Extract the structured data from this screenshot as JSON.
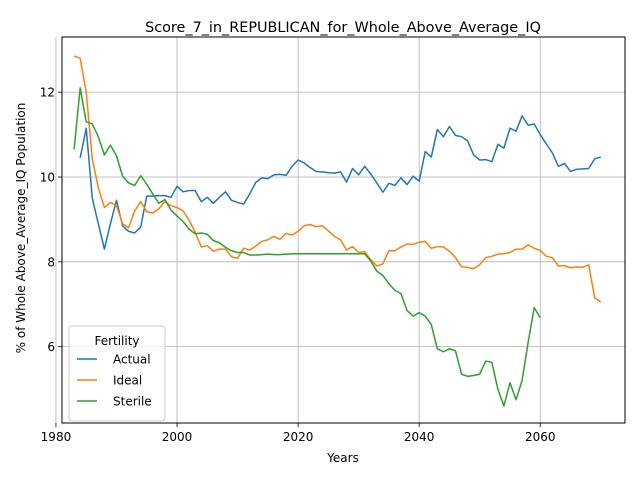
{
  "chart_data": {
    "type": "line",
    "title": "Score_7_in_REPUBLICAN_for_Whole_Above_Average_IQ",
    "xlabel": "Years",
    "ylabel": "% of Whole Above_Average_IQ Population",
    "xlim": [
      1981,
      2074
    ],
    "ylim": [
      4.2,
      13.3
    ],
    "xticks": [
      1980,
      2000,
      2020,
      2040,
      2060
    ],
    "yticks": [
      6,
      8,
      10,
      12
    ],
    "grid": true,
    "legend": {
      "title": "Fertility",
      "position": "lower-left"
    },
    "series": [
      {
        "name": "Actual",
        "color": "#1f77b4",
        "points": [
          [
            1984,
            10.45
          ],
          [
            1985,
            11.15
          ],
          [
            1986,
            9.5
          ],
          [
            1987,
            8.9
          ],
          [
            1988,
            8.3
          ],
          [
            1989,
            8.9
          ],
          [
            1990,
            9.45
          ],
          [
            1991,
            8.85
          ],
          [
            1992,
            8.72
          ],
          [
            1993,
            8.68
          ],
          [
            1994,
            8.82
          ],
          [
            1995,
            9.55
          ],
          [
            1996,
            9.55
          ],
          [
            1997,
            9.56
          ],
          [
            1998,
            9.56
          ],
          [
            1999,
            9.52
          ],
          [
            2000,
            9.78
          ],
          [
            2001,
            9.65
          ],
          [
            2002,
            9.68
          ],
          [
            2003,
            9.68
          ],
          [
            2004,
            9.42
          ],
          [
            2005,
            9.52
          ],
          [
            2006,
            9.38
          ],
          [
            2007,
            9.52
          ],
          [
            2008,
            9.65
          ],
          [
            2009,
            9.45
          ],
          [
            2010,
            9.4
          ],
          [
            2011,
            9.36
          ],
          [
            2012,
            9.6
          ],
          [
            2013,
            9.87
          ],
          [
            2014,
            9.98
          ],
          [
            2015,
            9.96
          ],
          [
            2016,
            10.05
          ],
          [
            2017,
            10.06
          ],
          [
            2018,
            10.04
          ],
          [
            2019,
            10.25
          ],
          [
            2020,
            10.4
          ],
          [
            2021,
            10.33
          ],
          [
            2022,
            10.22
          ],
          [
            2023,
            10.13
          ],
          [
            2024,
            10.12
          ],
          [
            2025,
            10.1
          ],
          [
            2026,
            10.09
          ],
          [
            2027,
            10.12
          ],
          [
            2028,
            9.88
          ],
          [
            2029,
            10.2
          ],
          [
            2030,
            10.05
          ],
          [
            2031,
            10.25
          ],
          [
            2032,
            10.07
          ],
          [
            2033,
            9.86
          ],
          [
            2034,
            9.64
          ],
          [
            2035,
            9.85
          ],
          [
            2036,
            9.8
          ],
          [
            2037,
            9.98
          ],
          [
            2038,
            9.82
          ],
          [
            2039,
            10.02
          ],
          [
            2040,
            9.9
          ],
          [
            2041,
            10.6
          ],
          [
            2042,
            10.47
          ],
          [
            2043,
            11.12
          ],
          [
            2044,
            10.95
          ],
          [
            2045,
            11.19
          ],
          [
            2046,
            10.98
          ],
          [
            2047,
            10.95
          ],
          [
            2048,
            10.85
          ],
          [
            2049,
            10.52
          ],
          [
            2050,
            10.4
          ],
          [
            2051,
            10.41
          ],
          [
            2052,
            10.36
          ],
          [
            2053,
            10.77
          ],
          [
            2054,
            10.68
          ],
          [
            2055,
            11.15
          ],
          [
            2056,
            11.08
          ],
          [
            2057,
            11.44
          ],
          [
            2058,
            11.22
          ],
          [
            2059,
            11.25
          ],
          [
            2060,
            11.0
          ],
          [
            2061,
            10.78
          ],
          [
            2062,
            10.57
          ],
          [
            2063,
            10.25
          ],
          [
            2064,
            10.32
          ],
          [
            2065,
            10.13
          ],
          [
            2066,
            10.18
          ],
          [
            2067,
            10.19
          ],
          [
            2068,
            10.2
          ],
          [
            2069,
            10.43
          ],
          [
            2070,
            10.47
          ]
        ]
      },
      {
        "name": "Ideal",
        "color": "#ff7f0e",
        "points": [
          [
            1983,
            12.85
          ],
          [
            1984,
            12.8
          ],
          [
            1985,
            12.0
          ],
          [
            1986,
            10.42
          ],
          [
            1987,
            9.75
          ],
          [
            1988,
            9.28
          ],
          [
            1989,
            9.4
          ],
          [
            1990,
            9.32
          ],
          [
            1991,
            8.9
          ],
          [
            1992,
            8.8
          ],
          [
            1993,
            9.2
          ],
          [
            1994,
            9.42
          ],
          [
            1995,
            9.18
          ],
          [
            1996,
            9.15
          ],
          [
            1997,
            9.25
          ],
          [
            1998,
            9.42
          ],
          [
            1999,
            9.32
          ],
          [
            2000,
            9.28
          ],
          [
            2001,
            9.2
          ],
          [
            2002,
            8.98
          ],
          [
            2003,
            8.7
          ],
          [
            2004,
            8.35
          ],
          [
            2005,
            8.38
          ],
          [
            2006,
            8.25
          ],
          [
            2007,
            8.3
          ],
          [
            2008,
            8.3
          ],
          [
            2009,
            8.12
          ],
          [
            2010,
            8.08
          ],
          [
            2011,
            8.32
          ],
          [
            2012,
            8.28
          ],
          [
            2013,
            8.37
          ],
          [
            2014,
            8.48
          ],
          [
            2015,
            8.52
          ],
          [
            2016,
            8.6
          ],
          [
            2017,
            8.53
          ],
          [
            2018,
            8.67
          ],
          [
            2019,
            8.63
          ],
          [
            2020,
            8.72
          ],
          [
            2021,
            8.85
          ],
          [
            2022,
            8.88
          ],
          [
            2023,
            8.83
          ],
          [
            2024,
            8.85
          ],
          [
            2025,
            8.73
          ],
          [
            2026,
            8.6
          ],
          [
            2027,
            8.52
          ],
          [
            2028,
            8.28
          ],
          [
            2029,
            8.36
          ],
          [
            2030,
            8.22
          ],
          [
            2031,
            8.24
          ],
          [
            2032,
            8.05
          ],
          [
            2033,
            7.9
          ],
          [
            2034,
            7.95
          ],
          [
            2035,
            8.26
          ],
          [
            2036,
            8.26
          ],
          [
            2037,
            8.35
          ],
          [
            2038,
            8.42
          ],
          [
            2039,
            8.41
          ],
          [
            2040,
            8.46
          ],
          [
            2041,
            8.48
          ],
          [
            2042,
            8.32
          ],
          [
            2043,
            8.36
          ],
          [
            2044,
            8.35
          ],
          [
            2045,
            8.25
          ],
          [
            2046,
            8.1
          ],
          [
            2047,
            7.88
          ],
          [
            2048,
            7.87
          ],
          [
            2049,
            7.84
          ],
          [
            2050,
            7.93
          ],
          [
            2051,
            8.1
          ],
          [
            2052,
            8.13
          ],
          [
            2053,
            8.18
          ],
          [
            2054,
            8.19
          ],
          [
            2055,
            8.22
          ],
          [
            2056,
            8.3
          ],
          [
            2057,
            8.3
          ],
          [
            2058,
            8.4
          ],
          [
            2059,
            8.32
          ],
          [
            2060,
            8.27
          ],
          [
            2061,
            8.13
          ],
          [
            2062,
            8.1
          ],
          [
            2063,
            7.9
          ],
          [
            2064,
            7.91
          ],
          [
            2065,
            7.86
          ],
          [
            2066,
            7.88
          ],
          [
            2067,
            7.87
          ],
          [
            2068,
            7.93
          ],
          [
            2069,
            7.15
          ],
          [
            2070,
            7.05
          ]
        ]
      },
      {
        "name": "Sterile",
        "color": "#2ca02c",
        "points": [
          [
            1983,
            10.65
          ],
          [
            1984,
            12.1
          ],
          [
            1985,
            11.3
          ],
          [
            1986,
            11.25
          ],
          [
            1987,
            10.95
          ],
          [
            1988,
            10.52
          ],
          [
            1989,
            10.75
          ],
          [
            1990,
            10.5
          ],
          [
            1991,
            10.02
          ],
          [
            1992,
            9.86
          ],
          [
            1993,
            9.8
          ],
          [
            1994,
            10.03
          ],
          [
            1995,
            9.83
          ],
          [
            1996,
            9.6
          ],
          [
            1997,
            9.38
          ],
          [
            1998,
            9.47
          ],
          [
            1999,
            9.22
          ],
          [
            2000,
            9.08
          ],
          [
            2001,
            8.95
          ],
          [
            2002,
            8.77
          ],
          [
            2003,
            8.66
          ],
          [
            2004,
            8.68
          ],
          [
            2005,
            8.65
          ],
          [
            2006,
            8.5
          ],
          [
            2007,
            8.45
          ],
          [
            2008,
            8.34
          ],
          [
            2009,
            8.26
          ],
          [
            2010,
            8.22
          ],
          [
            2011,
            8.22
          ],
          [
            2012,
            8.16
          ],
          [
            2013,
            8.16
          ],
          [
            2014,
            8.17
          ],
          [
            2015,
            8.18
          ],
          [
            2016,
            8.17
          ],
          [
            2017,
            8.17
          ],
          [
            2018,
            8.18
          ],
          [
            2019,
            8.19
          ],
          [
            2020,
            8.19
          ],
          [
            2021,
            8.19
          ],
          [
            2022,
            8.19
          ],
          [
            2023,
            8.19
          ],
          [
            2024,
            8.19
          ],
          [
            2025,
            8.19
          ],
          [
            2026,
            8.19
          ],
          [
            2027,
            8.19
          ],
          [
            2028,
            8.19
          ],
          [
            2029,
            8.19
          ],
          [
            2030,
            8.19
          ],
          [
            2031,
            8.19
          ],
          [
            2032,
            8.02
          ],
          [
            2033,
            7.78
          ],
          [
            2034,
            7.68
          ],
          [
            2035,
            7.48
          ],
          [
            2036,
            7.33
          ],
          [
            2037,
            7.25
          ],
          [
            2038,
            6.85
          ],
          [
            2039,
            6.72
          ],
          [
            2040,
            6.8
          ],
          [
            2041,
            6.72
          ],
          [
            2042,
            6.52
          ],
          [
            2043,
            5.95
          ],
          [
            2044,
            5.88
          ],
          [
            2045,
            5.95
          ],
          [
            2046,
            5.9
          ],
          [
            2047,
            5.35
          ],
          [
            2048,
            5.3
          ],
          [
            2049,
            5.32
          ],
          [
            2050,
            5.35
          ],
          [
            2051,
            5.66
          ],
          [
            2052,
            5.63
          ],
          [
            2053,
            5.0
          ],
          [
            2054,
            4.6
          ],
          [
            2055,
            5.15
          ],
          [
            2056,
            4.75
          ],
          [
            2057,
            5.2
          ],
          [
            2058,
            6.1
          ],
          [
            2059,
            6.92
          ],
          [
            2060,
            6.68
          ]
        ]
      }
    ]
  }
}
